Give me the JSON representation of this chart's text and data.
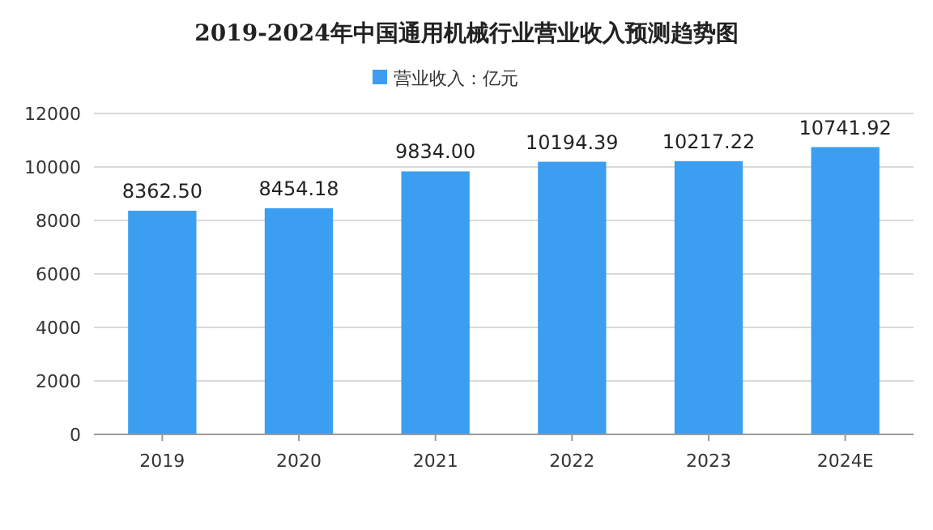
{
  "chart_data": {
    "type": "bar",
    "title": "2019-2024年中国通用机械行业营业收入预测趋势图",
    "categories": [
      "2019",
      "2020",
      "2021",
      "2022",
      "2023",
      "2024E"
    ],
    "series": [
      {
        "name": "营业收入：亿元",
        "color": "#3c9ef0",
        "values": [
          8362.5,
          8454.18,
          9834.0,
          10194.39,
          10217.22,
          10741.92
        ]
      }
    ],
    "value_labels": [
      "8362.50",
      "8454.18",
      "9834.00",
      "10194.39",
      "10217.22",
      "10741.92"
    ],
    "ylim": [
      0,
      12000
    ],
    "yticks": [
      0,
      2000,
      4000,
      6000,
      8000,
      10000,
      12000
    ],
    "grid": "y",
    "legend": "top"
  }
}
